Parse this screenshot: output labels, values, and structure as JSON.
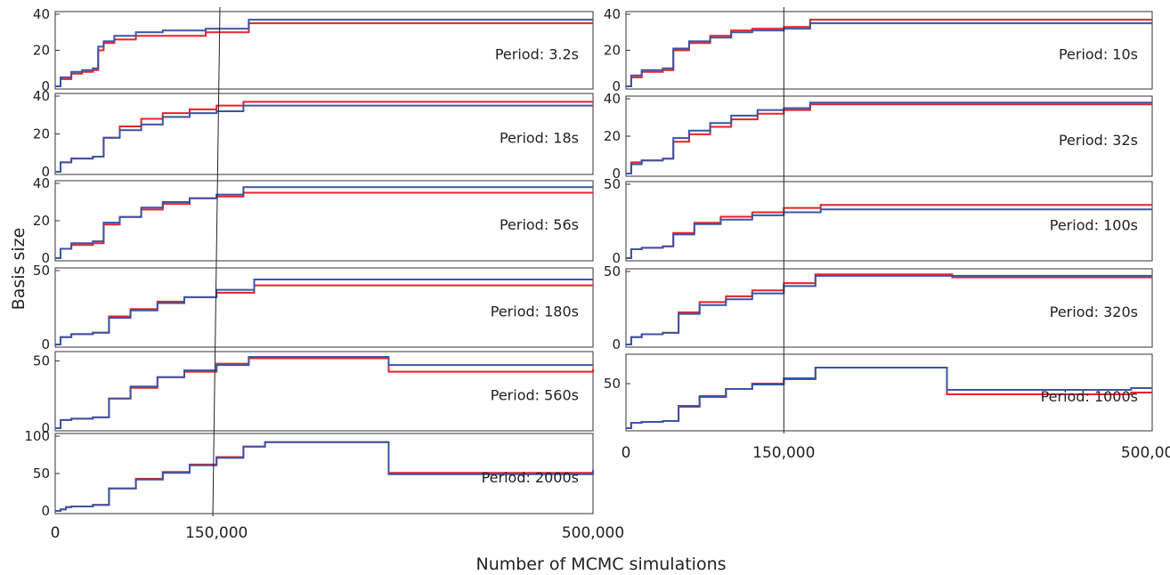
{
  "figure": {
    "ylabel": "Basis size",
    "xlabel": "Number of MCMC simulations"
  },
  "colors": {
    "series_a": "#e8212b",
    "series_b": "#3a55a4",
    "frame": "#333333",
    "marker_line": "#222222"
  },
  "chart_data": [
    {
      "type": "line",
      "column": "left",
      "label": "Period: 3.2s",
      "xlim": [
        0,
        500000
      ],
      "ylim": [
        0,
        40
      ],
      "yticks": [
        0,
        20,
        40
      ],
      "series": [
        {
          "color": "#e8212b",
          "x": [
            0,
            5000,
            15000,
            25000,
            35000,
            40000,
            45000,
            55000,
            75000,
            100000,
            140000,
            180000,
            500000
          ],
          "y": [
            0,
            4,
            7,
            8,
            9,
            20,
            24,
            26,
            28,
            28,
            30,
            35,
            35
          ]
        },
        {
          "color": "#3a55a4",
          "x": [
            0,
            5000,
            15000,
            25000,
            35000,
            40000,
            45000,
            55000,
            75000,
            100000,
            140000,
            180000,
            500000
          ],
          "y": [
            0,
            5,
            8,
            9,
            10,
            22,
            25,
            28,
            30,
            31,
            32,
            37,
            37
          ]
        }
      ]
    },
    {
      "type": "line",
      "column": "left",
      "label": "Period: 18s",
      "xlim": [
        0,
        500000
      ],
      "ylim": [
        0,
        40
      ],
      "yticks": [
        0,
        20,
        40
      ],
      "series": [
        {
          "color": "#e8212b",
          "x": [
            0,
            5000,
            15000,
            35000,
            45000,
            60000,
            80000,
            100000,
            125000,
            150000,
            175000,
            500000
          ],
          "y": [
            0,
            5,
            7,
            8,
            18,
            24,
            28,
            31,
            33,
            35,
            37,
            37
          ]
        },
        {
          "color": "#3a55a4",
          "x": [
            0,
            5000,
            15000,
            35000,
            45000,
            60000,
            80000,
            100000,
            125000,
            150000,
            175000,
            500000
          ],
          "y": [
            0,
            5,
            7,
            8,
            18,
            22,
            25,
            29,
            31,
            32,
            35,
            35
          ]
        }
      ]
    },
    {
      "type": "line",
      "column": "left",
      "label": "Period: 56s",
      "xlim": [
        0,
        500000
      ],
      "ylim": [
        0,
        40
      ],
      "yticks": [
        0,
        20,
        40
      ],
      "series": [
        {
          "color": "#e8212b",
          "x": [
            0,
            5000,
            15000,
            35000,
            45000,
            60000,
            80000,
            100000,
            125000,
            150000,
            175000,
            500000
          ],
          "y": [
            0,
            5,
            7,
            8,
            18,
            22,
            26,
            29,
            32,
            33,
            35,
            35
          ]
        },
        {
          "color": "#3a55a4",
          "x": [
            0,
            5000,
            15000,
            35000,
            45000,
            60000,
            80000,
            100000,
            125000,
            150000,
            175000,
            500000
          ],
          "y": [
            0,
            5,
            8,
            9,
            19,
            22,
            27,
            30,
            32,
            34,
            38,
            38
          ]
        }
      ]
    },
    {
      "type": "line",
      "column": "left",
      "label": "Period: 180s",
      "xlim": [
        0,
        500000
      ],
      "ylim": [
        0,
        50
      ],
      "yticks": [
        0,
        50
      ],
      "series": [
        {
          "color": "#e8212b",
          "x": [
            0,
            5000,
            15000,
            35000,
            50000,
            70000,
            95000,
            120000,
            150000,
            185000,
            500000
          ],
          "y": [
            0,
            5,
            7,
            8,
            19,
            24,
            29,
            32,
            35,
            40,
            40
          ]
        },
        {
          "color": "#3a55a4",
          "x": [
            0,
            5000,
            15000,
            35000,
            50000,
            70000,
            95000,
            120000,
            150000,
            185000,
            500000
          ],
          "y": [
            0,
            5,
            7,
            8,
            18,
            23,
            28,
            32,
            37,
            44,
            44
          ]
        }
      ]
    },
    {
      "type": "line",
      "column": "left",
      "label": "Period: 560s",
      "xlim": [
        0,
        500000
      ],
      "ylim": [
        0,
        55
      ],
      "yticks": [
        0,
        50
      ],
      "series": [
        {
          "color": "#e8212b",
          "x": [
            0,
            5000,
            15000,
            35000,
            50000,
            70000,
            95000,
            120000,
            150000,
            180000,
            310000,
            500000
          ],
          "y": [
            0,
            6,
            7,
            8,
            22,
            30,
            38,
            42,
            48,
            52,
            42,
            44
          ]
        },
        {
          "color": "#3a55a4",
          "x": [
            0,
            5000,
            15000,
            35000,
            50000,
            70000,
            95000,
            120000,
            150000,
            180000,
            310000,
            500000
          ],
          "y": [
            0,
            6,
            7,
            8,
            22,
            31,
            38,
            43,
            47,
            53,
            47,
            47
          ]
        }
      ]
    },
    {
      "type": "line",
      "column": "left",
      "label": "Period: 2000s",
      "xlim": [
        0,
        500000
      ],
      "ylim": [
        0,
        100
      ],
      "yticks": [
        0,
        50,
        100
      ],
      "series": [
        {
          "color": "#e8212b",
          "x": [
            0,
            5000,
            10000,
            15000,
            35000,
            50000,
            75000,
            100000,
            125000,
            150000,
            175000,
            195000,
            310000,
            500000
          ],
          "y": [
            0,
            2,
            5,
            6,
            8,
            30,
            43,
            52,
            62,
            72,
            86,
            92,
            51,
            55
          ]
        },
        {
          "color": "#3a55a4",
          "x": [
            0,
            5000,
            10000,
            15000,
            35000,
            50000,
            75000,
            100000,
            125000,
            150000,
            175000,
            195000,
            310000,
            500000
          ],
          "y": [
            0,
            2,
            5,
            6,
            8,
            30,
            42,
            51,
            61,
            71,
            86,
            92,
            49,
            54
          ]
        }
      ]
    },
    {
      "type": "line",
      "column": "right",
      "label": "Period: 10s",
      "xlim": [
        0,
        500000
      ],
      "ylim": [
        0,
        40
      ],
      "yticks": [
        0,
        20,
        40
      ],
      "series": [
        {
          "color": "#e8212b",
          "x": [
            0,
            5000,
            15000,
            35000,
            45000,
            60000,
            80000,
            100000,
            120000,
            150000,
            175000,
            500000
          ],
          "y": [
            0,
            5,
            8,
            9,
            20,
            24,
            28,
            31,
            32,
            33,
            37,
            37
          ]
        },
        {
          "color": "#3a55a4",
          "x": [
            0,
            5000,
            15000,
            35000,
            45000,
            60000,
            80000,
            100000,
            120000,
            150000,
            175000,
            500000
          ],
          "y": [
            0,
            6,
            9,
            10,
            21,
            25,
            27,
            30,
            31,
            32,
            35,
            35
          ]
        }
      ]
    },
    {
      "type": "line",
      "column": "right",
      "label": "Period: 32s",
      "xlim": [
        0,
        500000
      ],
      "ylim": [
        0,
        40
      ],
      "yticks": [
        0,
        20,
        40
      ],
      "series": [
        {
          "color": "#e8212b",
          "x": [
            0,
            5000,
            15000,
            35000,
            45000,
            60000,
            80000,
            100000,
            125000,
            150000,
            175000,
            500000
          ],
          "y": [
            0,
            6,
            7,
            8,
            17,
            21,
            25,
            29,
            32,
            34,
            37,
            37
          ]
        },
        {
          "color": "#3a55a4",
          "x": [
            0,
            5000,
            15000,
            35000,
            45000,
            60000,
            80000,
            100000,
            125000,
            150000,
            175000,
            500000
          ],
          "y": [
            0,
            5,
            7,
            8,
            19,
            23,
            27,
            31,
            34,
            35,
            38,
            38
          ]
        }
      ]
    },
    {
      "type": "line",
      "column": "right",
      "label": "Period: 100s",
      "xlim": [
        0,
        500000
      ],
      "ylim": [
        0,
        50
      ],
      "yticks": [
        0,
        50
      ],
      "series": [
        {
          "color": "#e8212b",
          "x": [
            0,
            5000,
            15000,
            35000,
            45000,
            65000,
            90000,
            120000,
            150000,
            185000,
            500000
          ],
          "y": [
            0,
            6,
            7,
            8,
            17,
            24,
            28,
            31,
            34,
            36,
            36
          ]
        },
        {
          "color": "#3a55a4",
          "x": [
            0,
            5000,
            15000,
            35000,
            45000,
            65000,
            90000,
            120000,
            150000,
            185000,
            500000
          ],
          "y": [
            0,
            6,
            7,
            8,
            16,
            23,
            26,
            29,
            31,
            33,
            33
          ]
        }
      ]
    },
    {
      "type": "line",
      "column": "right",
      "label": "Period: 320s",
      "xlim": [
        0,
        500000
      ],
      "ylim": [
        0,
        50
      ],
      "yticks": [
        0,
        50
      ],
      "series": [
        {
          "color": "#e8212b",
          "x": [
            0,
            5000,
            15000,
            35000,
            50000,
            70000,
            95000,
            120000,
            150000,
            180000,
            310000,
            500000
          ],
          "y": [
            0,
            5,
            7,
            8,
            22,
            29,
            33,
            37,
            42,
            48,
            46,
            46
          ]
        },
        {
          "color": "#3a55a4",
          "x": [
            0,
            5000,
            15000,
            35000,
            50000,
            70000,
            95000,
            120000,
            150000,
            180000,
            310000,
            500000
          ],
          "y": [
            0,
            5,
            7,
            8,
            21,
            27,
            31,
            35,
            40,
            47,
            47,
            47
          ]
        }
      ]
    },
    {
      "type": "line",
      "column": "right",
      "label": "Period: 1000s",
      "xlim": [
        0,
        500000
      ],
      "ylim": [
        0,
        80
      ],
      "yticks": [
        50
      ],
      "series": [
        {
          "color": "#e8212b",
          "x": [
            0,
            5000,
            15000,
            35000,
            50000,
            70000,
            95000,
            120000,
            150000,
            180000,
            305000,
            480000,
            500000
          ],
          "y": [
            0,
            6,
            7,
            8,
            24,
            35,
            44,
            50,
            55,
            68,
            38,
            40,
            40
          ]
        },
        {
          "color": "#3a55a4",
          "x": [
            0,
            5000,
            15000,
            35000,
            50000,
            70000,
            95000,
            120000,
            150000,
            180000,
            305000,
            480000,
            500000
          ],
          "y": [
            0,
            6,
            7,
            8,
            25,
            36,
            44,
            49,
            56,
            68,
            43,
            45,
            45
          ]
        }
      ]
    }
  ],
  "x_ticks": [
    {
      "value": 0,
      "label": "0"
    },
    {
      "value": 150000,
      "label": "150,000"
    },
    {
      "value": 500000,
      "label": "500,000"
    }
  ],
  "marker_x": 150000
}
